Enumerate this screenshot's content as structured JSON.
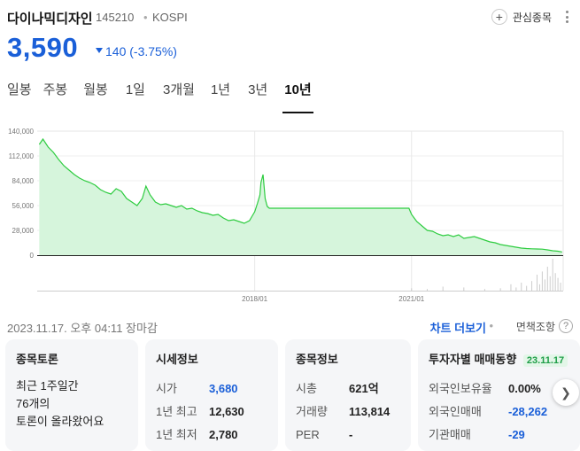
{
  "header": {
    "name": "다이나믹디자인",
    "code": "145210",
    "separator": "•",
    "market": "KOSPI",
    "favorite_label": "관심종목",
    "plus_glyph": "+"
  },
  "quote": {
    "price": "3,590",
    "change": "140 (-3.75%)",
    "direction": "down",
    "color": "#1a5fd8"
  },
  "tabs": [
    "일봉",
    "주봉",
    "월봉",
    "1일",
    "3개월",
    "1년",
    "3년",
    "10년"
  ],
  "active_tab": "10년",
  "chart_data": {
    "type": "area",
    "color": "#2ecc40",
    "fill": "#d6f5dc",
    "ylim": [
      0,
      140000
    ],
    "y_ticks": [
      "140,000",
      "112,000",
      "84,000",
      "56,000",
      "28,000",
      "0"
    ],
    "x_ticks": [
      "2018/01",
      "2021/01"
    ],
    "x_range": [
      "2013/11",
      "2023/11"
    ],
    "series": [
      {
        "values": [
          [
            2013.88,
            125000
          ],
          [
            2013.95,
            131000
          ],
          [
            2014.05,
            122000
          ],
          [
            2014.15,
            116000
          ],
          [
            2014.25,
            108000
          ],
          [
            2014.35,
            101000
          ],
          [
            2014.45,
            96000
          ],
          [
            2014.55,
            91000
          ],
          [
            2014.65,
            87000
          ],
          [
            2014.75,
            84000
          ],
          [
            2014.85,
            82000
          ],
          [
            2014.95,
            79000
          ],
          [
            2015.05,
            74000
          ],
          [
            2015.15,
            71000
          ],
          [
            2015.25,
            69000
          ],
          [
            2015.35,
            75000
          ],
          [
            2015.45,
            72000
          ],
          [
            2015.55,
            64000
          ],
          [
            2015.65,
            60000
          ],
          [
            2015.75,
            56000
          ],
          [
            2015.85,
            64000
          ],
          [
            2015.92,
            78000
          ],
          [
            2016.0,
            68000
          ],
          [
            2016.1,
            60000
          ],
          [
            2016.2,
            57000
          ],
          [
            2016.3,
            58000
          ],
          [
            2016.4,
            56000
          ],
          [
            2016.5,
            54000
          ],
          [
            2016.6,
            56000
          ],
          [
            2016.7,
            52000
          ],
          [
            2016.8,
            53000
          ],
          [
            2016.9,
            50000
          ],
          [
            2017.0,
            48000
          ],
          [
            2017.1,
            47000
          ],
          [
            2017.2,
            45000
          ],
          [
            2017.3,
            46000
          ],
          [
            2017.4,
            42000
          ],
          [
            2017.5,
            39000
          ],
          [
            2017.6,
            40000
          ],
          [
            2017.7,
            38000
          ],
          [
            2017.8,
            36000
          ],
          [
            2017.9,
            39000
          ],
          [
            2017.95,
            44000
          ],
          [
            2018.0,
            49000
          ],
          [
            2018.05,
            58000
          ],
          [
            2018.1,
            68000
          ],
          [
            2018.12,
            82000
          ],
          [
            2018.16,
            91000
          ],
          [
            2018.2,
            64000
          ],
          [
            2018.24,
            55000
          ],
          [
            2018.28,
            53000
          ],
          [
            2019.0,
            53000
          ],
          [
            2019.5,
            53000
          ],
          [
            2020.0,
            53000
          ],
          [
            2020.5,
            53000
          ],
          [
            2020.95,
            53000
          ],
          [
            2021.0,
            46000
          ],
          [
            2021.05,
            42000
          ],
          [
            2021.1,
            38000
          ],
          [
            2021.2,
            33000
          ],
          [
            2021.3,
            28000
          ],
          [
            2021.4,
            27000
          ],
          [
            2021.5,
            24000
          ],
          [
            2021.6,
            22000
          ],
          [
            2021.7,
            23000
          ],
          [
            2021.8,
            21000
          ],
          [
            2021.9,
            23000
          ],
          [
            2022.0,
            19000
          ],
          [
            2022.1,
            20000
          ],
          [
            2022.2,
            21000
          ],
          [
            2022.3,
            19000
          ],
          [
            2022.4,
            17000
          ],
          [
            2022.5,
            15000
          ],
          [
            2022.6,
            14000
          ],
          [
            2022.7,
            12000
          ],
          [
            2022.8,
            11000
          ],
          [
            2022.9,
            10000
          ],
          [
            2023.0,
            9000
          ],
          [
            2023.1,
            8000
          ],
          [
            2023.2,
            7500
          ],
          [
            2023.3,
            7200
          ],
          [
            2023.4,
            7000
          ],
          [
            2023.5,
            6800
          ],
          [
            2023.6,
            6000
          ],
          [
            2023.7,
            5000
          ],
          [
            2023.8,
            4500
          ],
          [
            2023.88,
            3590
          ]
        ]
      }
    ],
    "volume_color": "#cccccc",
    "grid": true
  },
  "status": {
    "timestamp": "2023.11.17. 오후 04:11 장마감",
    "chart_more": "차트 더보기",
    "separator": "•",
    "compare": "면책조항",
    "help_glyph": "?"
  },
  "cards": {
    "discussion": {
      "title": "종목토론",
      "line1": "최근 1주일간",
      "line2": "76개의",
      "line3": "토론이 올라왔어요"
    },
    "quote_info": {
      "title": "시세정보",
      "rows": [
        {
          "label": "시가",
          "value": "3,680"
        },
        {
          "label": "1년 최고",
          "value": "12,630"
        },
        {
          "label": "1년 최저",
          "value": "2,780"
        }
      ]
    },
    "stock_info": {
      "title": "종목정보",
      "rows": [
        {
          "label": "시총",
          "value": "621억"
        },
        {
          "label": "거래량",
          "value": "113,814"
        },
        {
          "label": "PER",
          "value": "-"
        }
      ]
    },
    "investor": {
      "title": "투자자별 매매동향",
      "date": "23.11.17",
      "rows": [
        {
          "label": "외국인보유율",
          "value": "0.00%"
        },
        {
          "label": "외국인매매",
          "value": "-28,262"
        },
        {
          "label": "기관매매",
          "value": "-29"
        }
      ]
    }
  }
}
